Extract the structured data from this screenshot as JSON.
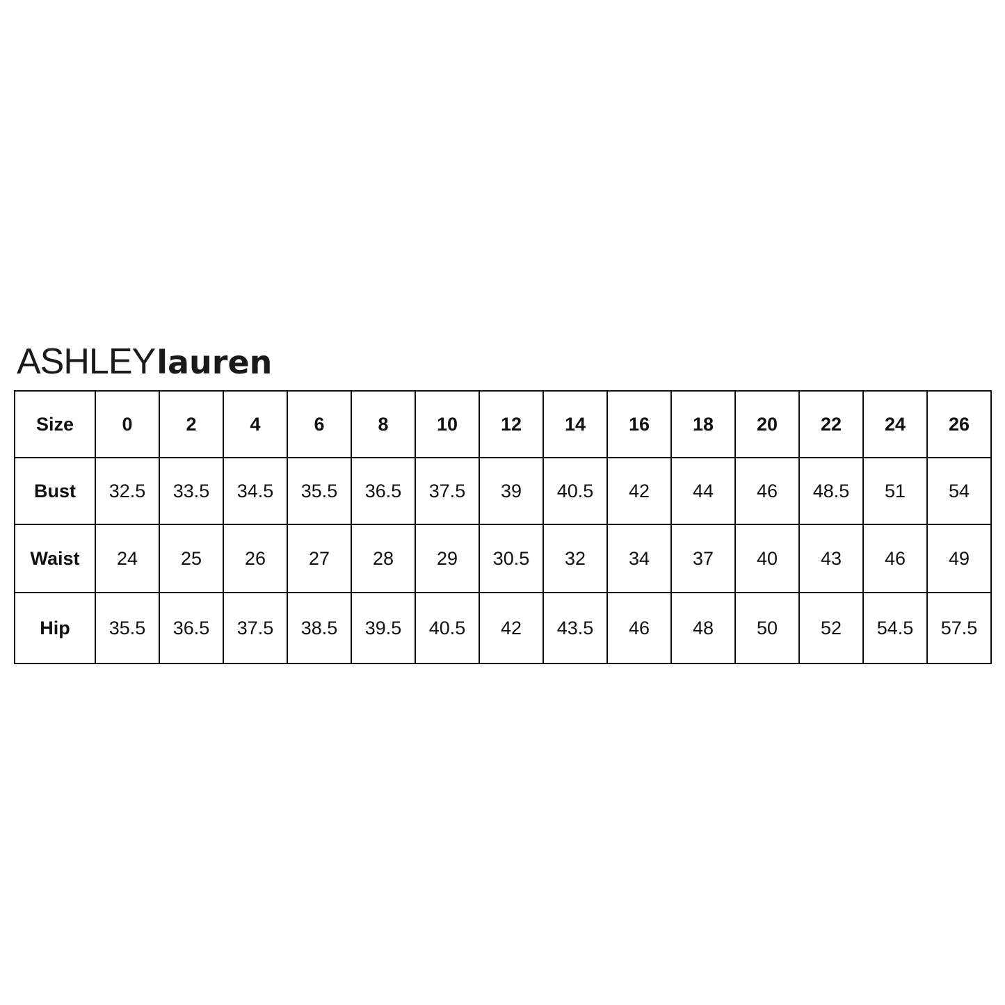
{
  "brand": {
    "part1": "ASHLEY",
    "part2": "lauren"
  },
  "table": {
    "header": [
      "Size",
      "0",
      "2",
      "4",
      "6",
      "8",
      "10",
      "12",
      "14",
      "16",
      "18",
      "20",
      "22",
      "24",
      "26"
    ],
    "rows": [
      {
        "label": "Bust",
        "values": [
          "32.5",
          "33.5",
          "34.5",
          "35.5",
          "36.5",
          "37.5",
          "39",
          "40.5",
          "42",
          "44",
          "46",
          "48.5",
          "51",
          "54"
        ]
      },
      {
        "label": "Waist",
        "values": [
          "24",
          "25",
          "26",
          "27",
          "28",
          "29",
          "30.5",
          "32",
          "34",
          "37",
          "40",
          "43",
          "46",
          "49"
        ]
      },
      {
        "label": "Hip",
        "values": [
          "35.5",
          "36.5",
          "37.5",
          "38.5",
          "39.5",
          "40.5",
          "42",
          "43.5",
          "46",
          "48",
          "50",
          "52",
          "54.5",
          "57.5"
        ]
      }
    ]
  },
  "colors": {
    "text": "#111111",
    "border": "#111111",
    "background": "#ffffff"
  }
}
